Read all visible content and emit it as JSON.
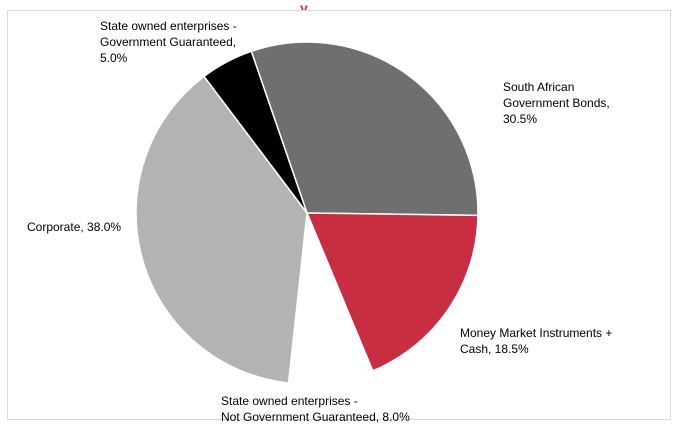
{
  "chart_data": {
    "type": "pie",
    "title_fragment": "y",
    "slices": [
      {
        "name": "South African Government Bonds",
        "value": 30.5,
        "color": "#6f6f6f",
        "label_lines": [
          "South African",
          "Government Bonds,",
          "30.5%"
        ]
      },
      {
        "name": "Money Market Instruments + Cash",
        "value": 18.5,
        "color": "#c72e41",
        "label_lines": [
          "Money Market Instruments +",
          "Cash, 18.5%"
        ]
      },
      {
        "name": "State owned enterprises - Not Government Guaranteed",
        "value": 8.0,
        "color": "#ffffff",
        "label_lines": [
          "State owned enterprises -",
          "Not Government Guaranteed, 8.0%"
        ]
      },
      {
        "name": "Corporate",
        "value": 38.0,
        "color": "#b3b3b3",
        "label_lines": [
          "Corporate, 38.0%"
        ]
      },
      {
        "name": "State owned enterprises - Government Guaranteed",
        "value": 5.0,
        "color": "#000000",
        "label_lines": [
          "State owned enterprises -",
          "Government Guaranteed,",
          "5.0%"
        ]
      }
    ]
  }
}
